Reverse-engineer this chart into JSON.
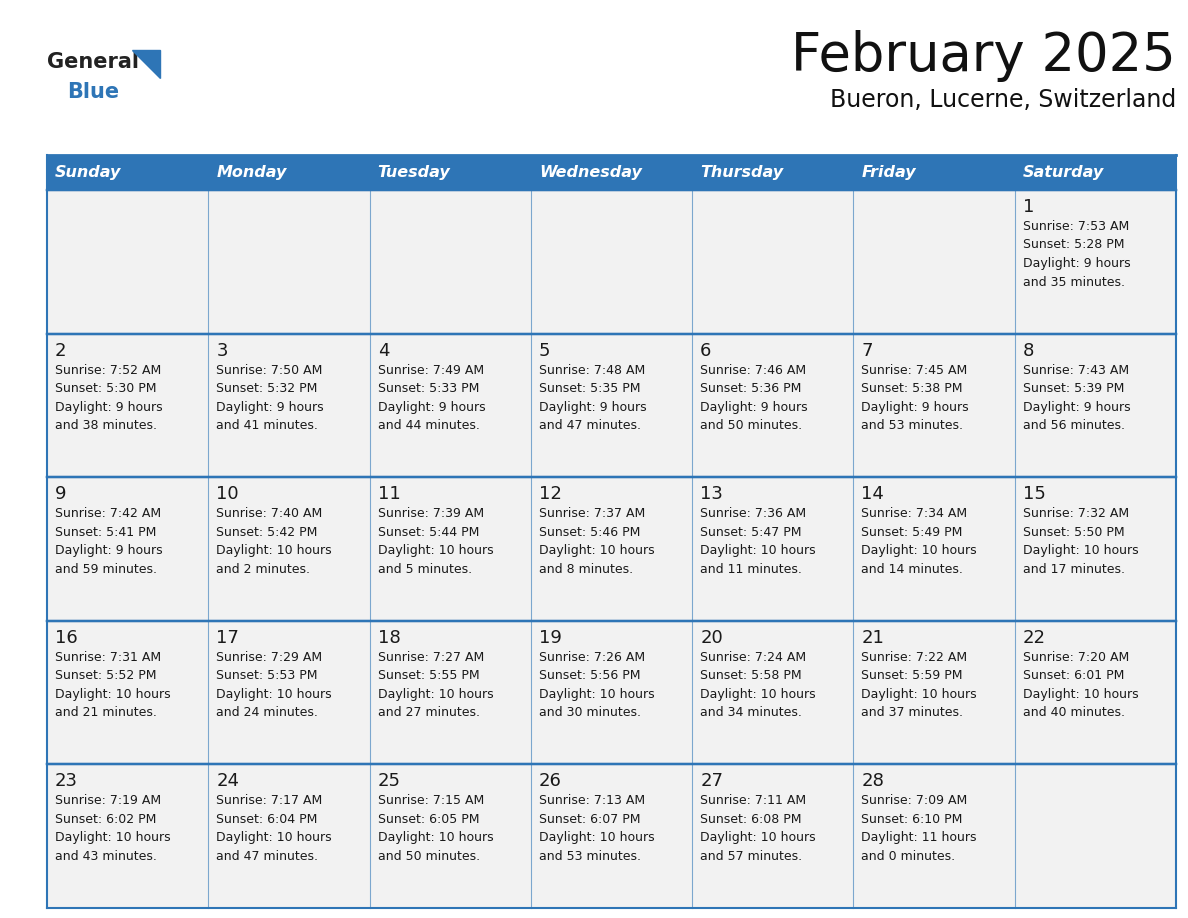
{
  "title": "February 2025",
  "subtitle": "Bueron, Lucerne, Switzerland",
  "header_bg": "#2E75B6",
  "header_text_color": "#FFFFFF",
  "cell_bg": "#F2F2F2",
  "cell_bg_alt": "#FFFFFF",
  "cell_border_color": "#2E75B6",
  "day_number_color": "#1a1a1a",
  "info_text_color": "#1a1a1a",
  "days_of_week": [
    "Sunday",
    "Monday",
    "Tuesday",
    "Wednesday",
    "Thursday",
    "Friday",
    "Saturday"
  ],
  "logo_general_color": "#222222",
  "logo_blue_color": "#2E75B6",
  "calendar_data": [
    [
      {
        "day": "",
        "info": ""
      },
      {
        "day": "",
        "info": ""
      },
      {
        "day": "",
        "info": ""
      },
      {
        "day": "",
        "info": ""
      },
      {
        "day": "",
        "info": ""
      },
      {
        "day": "",
        "info": ""
      },
      {
        "day": "1",
        "info": "Sunrise: 7:53 AM\nSunset: 5:28 PM\nDaylight: 9 hours\nand 35 minutes."
      }
    ],
    [
      {
        "day": "2",
        "info": "Sunrise: 7:52 AM\nSunset: 5:30 PM\nDaylight: 9 hours\nand 38 minutes."
      },
      {
        "day": "3",
        "info": "Sunrise: 7:50 AM\nSunset: 5:32 PM\nDaylight: 9 hours\nand 41 minutes."
      },
      {
        "day": "4",
        "info": "Sunrise: 7:49 AM\nSunset: 5:33 PM\nDaylight: 9 hours\nand 44 minutes."
      },
      {
        "day": "5",
        "info": "Sunrise: 7:48 AM\nSunset: 5:35 PM\nDaylight: 9 hours\nand 47 minutes."
      },
      {
        "day": "6",
        "info": "Sunrise: 7:46 AM\nSunset: 5:36 PM\nDaylight: 9 hours\nand 50 minutes."
      },
      {
        "day": "7",
        "info": "Sunrise: 7:45 AM\nSunset: 5:38 PM\nDaylight: 9 hours\nand 53 minutes."
      },
      {
        "day": "8",
        "info": "Sunrise: 7:43 AM\nSunset: 5:39 PM\nDaylight: 9 hours\nand 56 minutes."
      }
    ],
    [
      {
        "day": "9",
        "info": "Sunrise: 7:42 AM\nSunset: 5:41 PM\nDaylight: 9 hours\nand 59 minutes."
      },
      {
        "day": "10",
        "info": "Sunrise: 7:40 AM\nSunset: 5:42 PM\nDaylight: 10 hours\nand 2 minutes."
      },
      {
        "day": "11",
        "info": "Sunrise: 7:39 AM\nSunset: 5:44 PM\nDaylight: 10 hours\nand 5 minutes."
      },
      {
        "day": "12",
        "info": "Sunrise: 7:37 AM\nSunset: 5:46 PM\nDaylight: 10 hours\nand 8 minutes."
      },
      {
        "day": "13",
        "info": "Sunrise: 7:36 AM\nSunset: 5:47 PM\nDaylight: 10 hours\nand 11 minutes."
      },
      {
        "day": "14",
        "info": "Sunrise: 7:34 AM\nSunset: 5:49 PM\nDaylight: 10 hours\nand 14 minutes."
      },
      {
        "day": "15",
        "info": "Sunrise: 7:32 AM\nSunset: 5:50 PM\nDaylight: 10 hours\nand 17 minutes."
      }
    ],
    [
      {
        "day": "16",
        "info": "Sunrise: 7:31 AM\nSunset: 5:52 PM\nDaylight: 10 hours\nand 21 minutes."
      },
      {
        "day": "17",
        "info": "Sunrise: 7:29 AM\nSunset: 5:53 PM\nDaylight: 10 hours\nand 24 minutes."
      },
      {
        "day": "18",
        "info": "Sunrise: 7:27 AM\nSunset: 5:55 PM\nDaylight: 10 hours\nand 27 minutes."
      },
      {
        "day": "19",
        "info": "Sunrise: 7:26 AM\nSunset: 5:56 PM\nDaylight: 10 hours\nand 30 minutes."
      },
      {
        "day": "20",
        "info": "Sunrise: 7:24 AM\nSunset: 5:58 PM\nDaylight: 10 hours\nand 34 minutes."
      },
      {
        "day": "21",
        "info": "Sunrise: 7:22 AM\nSunset: 5:59 PM\nDaylight: 10 hours\nand 37 minutes."
      },
      {
        "day": "22",
        "info": "Sunrise: 7:20 AM\nSunset: 6:01 PM\nDaylight: 10 hours\nand 40 minutes."
      }
    ],
    [
      {
        "day": "23",
        "info": "Sunrise: 7:19 AM\nSunset: 6:02 PM\nDaylight: 10 hours\nand 43 minutes."
      },
      {
        "day": "24",
        "info": "Sunrise: 7:17 AM\nSunset: 6:04 PM\nDaylight: 10 hours\nand 47 minutes."
      },
      {
        "day": "25",
        "info": "Sunrise: 7:15 AM\nSunset: 6:05 PM\nDaylight: 10 hours\nand 50 minutes."
      },
      {
        "day": "26",
        "info": "Sunrise: 7:13 AM\nSunset: 6:07 PM\nDaylight: 10 hours\nand 53 minutes."
      },
      {
        "day": "27",
        "info": "Sunrise: 7:11 AM\nSunset: 6:08 PM\nDaylight: 10 hours\nand 57 minutes."
      },
      {
        "day": "28",
        "info": "Sunrise: 7:09 AM\nSunset: 6:10 PM\nDaylight: 11 hours\nand 0 minutes."
      },
      {
        "day": "",
        "info": ""
      }
    ]
  ]
}
